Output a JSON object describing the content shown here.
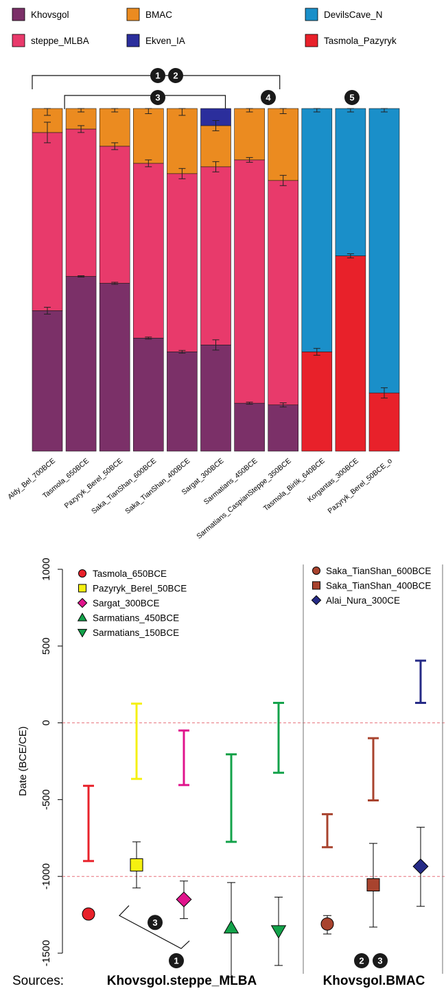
{
  "colors": {
    "Khovsgol": "#7B3068",
    "steppe_MLBA": "#E83A6B",
    "BMAC": "#EB8B20",
    "Ekven_IA": "#2B2E9C",
    "DevilsCave_N": "#1A8FC9",
    "Tasmola_Pazyryk": "#E8212A",
    "Tasmola_650BCE": "#E8212A",
    "Pazyryk_Berel_50BCE": "#F5F010",
    "Sargat_300BCE": "#E0148C",
    "Sarmatians_450BCE": "#13A24A",
    "Sarmatians_150BCE": "#13A24A",
    "Saka_TianShan_600BCE": "#A8432E",
    "Saka_TianShan_400BCE": "#A8432E",
    "Alai_Nura_300CE": "#252A86"
  },
  "chart_data": [
    {
      "type": "bar",
      "stacked": true,
      "legend": [
        "Khovsgol",
        "steppe_MLBA",
        "BMAC",
        "Ekven_IA",
        "DevilsCave_N",
        "Tasmola_Pazyryk"
      ],
      "categories": [
        "Aldy_Bel_700BCE",
        "Tasmola_650BCE",
        "Pazyryk_Berel_50BCE",
        "Saka_TianShan_600BCE",
        "Saka_TianShan_400BCE",
        "Sargat_300BCE",
        "Sarmatians_450BCE",
        "Sarmatians_CaspianSteppe_350BCE",
        "Tasmola_Birlik_640BCE",
        "Korgantas_300BCE",
        "Pazyryk_Berel_50BCE_o"
      ],
      "series": [
        {
          "name": "Khovsgol",
          "values": [
            0.41,
            0.51,
            0.49,
            0.33,
            0.29,
            0.31,
            0.14,
            0.135,
            0,
            0,
            0
          ]
        },
        {
          "name": "steppe_MLBA",
          "values": [
            0.52,
            0.43,
            0.4,
            0.51,
            0.52,
            0.52,
            0.71,
            0.655,
            0,
            0,
            0
          ]
        },
        {
          "name": "BMAC",
          "values": [
            0.07,
            0.06,
            0.11,
            0.16,
            0.19,
            0.12,
            0.15,
            0.21,
            0,
            0,
            0
          ]
        },
        {
          "name": "Ekven_IA",
          "values": [
            0,
            0,
            0,
            0,
            0,
            0.05,
            0,
            0,
            0,
            0,
            0
          ]
        },
        {
          "name": "Tasmola_Pazyryk",
          "values": [
            0,
            0,
            0,
            0,
            0,
            0,
            0,
            0,
            0.29,
            0.57,
            0.17
          ]
        },
        {
          "name": "DevilsCave_N",
          "values": [
            0,
            0,
            0,
            0,
            0,
            0,
            0,
            0,
            0.71,
            0.43,
            0.83
          ]
        }
      ],
      "error_bars": [
        {
          "component": "Khovsgol",
          "center": [
            0.41,
            0.51,
            0.49,
            0.33,
            0.29,
            0.31,
            0.14,
            0.135,
            0.29,
            0.57,
            0.17
          ],
          "err": [
            0.01,
            0.002,
            0.003,
            0.003,
            0.004,
            0.015,
            0.003,
            0.006,
            0.01,
            0.006,
            0.015
          ]
        },
        {
          "component": "steppe_MLBA",
          "center": [
            0.93,
            0.94,
            0.89,
            0.84,
            0.81,
            0.83,
            0.85,
            0.79
          ],
          "err": [
            0.03,
            0.01,
            0.01,
            0.01,
            0.015,
            0.015,
            0.007,
            0.015
          ]
        },
        {
          "component": "BMAC",
          "center": [
            1.0,
            1.0,
            1.0,
            1.0,
            1.0,
            0.95,
            1.0,
            1.0,
            1.0,
            1.0,
            1.0
          ],
          "err": [
            0.02,
            0.01,
            0.01,
            0.015,
            0.02,
            0.015,
            0.01,
            0.015,
            0.01,
            0.01,
            0.01
          ]
        }
      ],
      "groupings": [
        {
          "label": "1",
          "from": "Aldy_Bel_700BCE",
          "to": "Sarmatians_CaspianSteppe_350BCE"
        },
        {
          "label": "2",
          "from": "Aldy_Bel_700BCE",
          "to": "Sarmatians_CaspianSteppe_350BCE"
        },
        {
          "label": "3",
          "from": "Tasmola_650BCE",
          "to": "Sargat_300BCE"
        },
        {
          "label": "4",
          "from": "Sarmatians_450BCE",
          "to": "Sarmatians_CaspianSteppe_350BCE"
        },
        {
          "label": "5",
          "from": "Tasmola_Birlik_640BCE",
          "to": "Pazyryk_Berel_50BCE_o"
        }
      ],
      "ylim": [
        0,
        1
      ]
    },
    {
      "type": "scatter",
      "ylabel": "Date (BCE/CE)",
      "ylim": [
        -1500,
        1000
      ],
      "yticks": [
        -1500,
        -1000,
        -500,
        0,
        500,
        1000
      ],
      "reference_lines": [
        0,
        -1000
      ],
      "legend_left": [
        {
          "name": "Tasmola_650BCE",
          "marker": "circle"
        },
        {
          "name": "Pazyryk_Berel_50BCE",
          "marker": "square"
        },
        {
          "name": "Sargat_300BCE",
          "marker": "diamond"
        },
        {
          "name": "Sarmatians_450BCE",
          "marker": "triangle-up"
        },
        {
          "name": "Sarmatians_150BCE",
          "marker": "triangle-down"
        }
      ],
      "legend_right": [
        {
          "name": "Saka_TianShan_600BCE",
          "marker": "circle"
        },
        {
          "name": "Saka_TianShan_400BCE",
          "marker": "square"
        },
        {
          "name": "Alai_Nura_300CE",
          "marker": "diamond"
        }
      ],
      "points": [
        {
          "group": "Tasmola_650BCE",
          "estimate": -1245,
          "ci": [
            -1270,
            -1220
          ],
          "date_range": [
            -900,
            -410
          ]
        },
        {
          "group": "Pazyryk_Berel_50BCE",
          "estimate": -925,
          "ci": [
            -1075,
            -775
          ],
          "date_range": [
            -365,
            125
          ]
        },
        {
          "group": "Sargat_300BCE",
          "estimate": -1150,
          "ci": [
            -1275,
            -1030
          ],
          "date_range": [
            -405,
            -50
          ]
        },
        {
          "group": "Sarmatians_450BCE",
          "estimate": -1335,
          "ci": [
            -1655,
            -1040
          ],
          "date_range": [
            -775,
            -205
          ]
        },
        {
          "group": "Sarmatians_150BCE",
          "estimate": -1355,
          "ci": [
            -1580,
            -1135
          ],
          "date_range": [
            -325,
            130
          ]
        },
        {
          "group": "Saka_TianShan_600BCE",
          "estimate": -1310,
          "ci": [
            -1375,
            -1255
          ],
          "date_range": [
            -810,
            -595
          ]
        },
        {
          "group": "Saka_TianShan_400BCE",
          "estimate": -1055,
          "ci": [
            -1330,
            -785
          ],
          "date_range": [
            -505,
            -100
          ]
        },
        {
          "group": "Alai_Nura_300CE",
          "estimate": -935,
          "ci": [
            -1195,
            -680
          ],
          "date_range": [
            130,
            405
          ]
        }
      ],
      "panels": [
        {
          "source": "Khovsgol.steppe_MLBA",
          "badges": [
            "1"
          ]
        },
        {
          "source": "Khovsgol.BMAC",
          "badges": [
            "2",
            "3"
          ]
        }
      ],
      "bracket_badge": "3",
      "sources_label": "Sources:"
    }
  ]
}
